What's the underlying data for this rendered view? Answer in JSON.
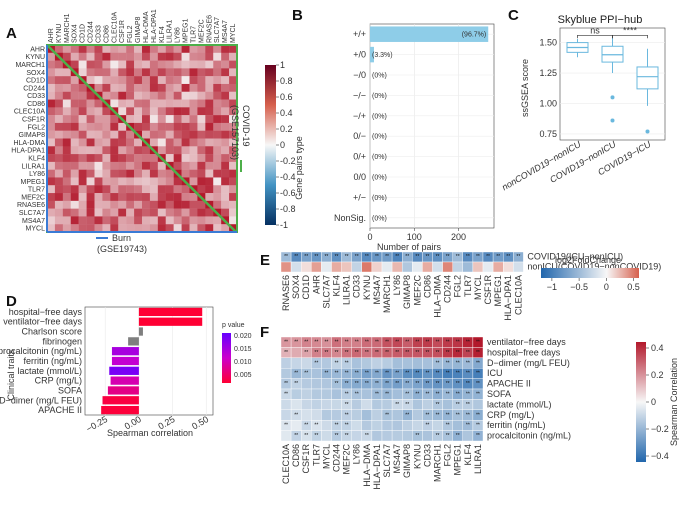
{
  "panels": {
    "A": "A",
    "B": "B",
    "C": "C",
    "D": "D",
    "E": "E",
    "F": "F"
  },
  "palette": {
    "red": "#b2182b",
    "blue": "#2166ac",
    "white": "#f7f7f7",
    "green": "#4daf4a",
    "skyblue": "#8ecde8",
    "magenta": "#ff00cc",
    "violet": "#6600ff"
  },
  "chart_data": [
    {
      "id": "A",
      "type": "heatmap",
      "genes": [
        "AHR",
        "KYNU",
        "MARCH1",
        "SOX4",
        "CD1D",
        "CD244",
        "CD33",
        "CD86",
        "CLEC10A",
        "CSF1R",
        "FGL2",
        "GIMAP8",
        "HLA-DMA",
        "HLA-DPA1",
        "KLF4",
        "LILRA1",
        "LY86",
        "MPEG1",
        "TLR7",
        "MEF2C",
        "RNASE6",
        "SLC7A7",
        "MS4A7",
        "MYCL"
      ],
      "colorbar_ticks": [
        "1",
        "0.8",
        "0.6",
        "0.4",
        "0.2",
        "0",
        "-0.2",
        "-0.4",
        "-0.6",
        "-0.8",
        "-1"
      ],
      "colorbar_range": [
        -1,
        1
      ],
      "left_label": "Burn",
      "left_label_2": "(GSE19743)",
      "right_label": "COVID-19",
      "right_label_2": "(GSE157103)"
    },
    {
      "id": "B",
      "type": "bar",
      "title": "",
      "xlabel": "Number of pairs",
      "ylabel": "Gene pairs type",
      "categories": [
        "+/+",
        "+/0",
        "−/0",
        "−/−",
        "−/+",
        "0/−",
        "0/+",
        "0/0",
        "+/−",
        "NonSig."
      ],
      "values": [
        267,
        9,
        0,
        0,
        0,
        0,
        0,
        0,
        0,
        0
      ],
      "labels": [
        "(96.7%)",
        "(3.3%)",
        "(0%)",
        "(0%)",
        "(0%)",
        "(0%)",
        "(0%)",
        "(0%)",
        "(0%)",
        "(0%)"
      ],
      "xticks": [
        0,
        100,
        200
      ],
      "xlim": [
        0,
        280
      ]
    },
    {
      "id": "C",
      "type": "box",
      "title": "Skyblue PPI−hub",
      "ylabel": "ssGSEA score",
      "categories": [
        "nonCOVID19−nonICU",
        "COVID19−nonICU",
        "COVID19−ICU"
      ],
      "boxes": [
        {
          "min": 1.38,
          "q1": 1.42,
          "median": 1.46,
          "q3": 1.5,
          "max": 1.53,
          "outliers": []
        },
        {
          "min": 1.25,
          "q1": 1.34,
          "median": 1.4,
          "q3": 1.47,
          "max": 1.54,
          "outliers": [
            1.05,
            0.86
          ]
        },
        {
          "min": 0.98,
          "q1": 1.12,
          "median": 1.22,
          "q3": 1.3,
          "max": 1.45,
          "outliers": [
            0.77
          ]
        }
      ],
      "yticks": [
        "0.75",
        "1.00",
        "1.25",
        "1.50"
      ],
      "ylim": [
        0.7,
        1.62
      ],
      "sig": [
        {
          "text": "ns"
        },
        {
          "text": "****"
        }
      ]
    },
    {
      "id": "D",
      "type": "bar",
      "xlabel": "Spearman correlation",
      "ylabel": "Clinical traits",
      "legend_title": "p value",
      "categories": [
        "hospital−free days",
        "ventilator−free days",
        "Charlson score",
        "fibrinogen",
        "procalcitonin (ng/mL)",
        "ferritin (ng/mL)",
        "lactate (mmol/L)",
        "CRP (mg/L)",
        "SOFA",
        "D−dimer (mg/L FEU)",
        "APACHE II"
      ],
      "values": [
        0.47,
        0.47,
        0.03,
        -0.08,
        -0.2,
        -0.2,
        -0.22,
        -0.21,
        -0.23,
        -0.27,
        -0.28
      ],
      "pvalues": [
        0.0001,
        0.0001,
        null,
        null,
        0.015,
        0.012,
        0.02,
        0.009,
        0.006,
        0.001,
        0.0005
      ],
      "xticks": [
        "−0.25",
        "0.00",
        "0.25",
        "0.50"
      ],
      "xlim": [
        -0.4,
        0.55
      ],
      "legend_ticks": [
        "0.020",
        "0.015",
        "0.010",
        "0.005"
      ]
    },
    {
      "id": "E",
      "type": "heatmap",
      "genes": [
        "RNASE6",
        "SOX4",
        "CD1D",
        "AHR",
        "SLC7A7",
        "KLF4",
        "LILRA1",
        "CD33",
        "KYNU",
        "MS4A7",
        "MARCH1",
        "LY86",
        "GIMAP8",
        "MEF2C",
        "CD86",
        "HLA−DMA",
        "CD244",
        "FGL2",
        "TLR7",
        "MYCL",
        "CSF1R",
        "MPEG1",
        "HLA−DPA1",
        "CLEC10A"
      ],
      "rows": [
        "COVID19(ICU−nonICU)",
        "nonICU(COVID19−nonCOVID19)"
      ],
      "values": [
        [
          -0.5,
          -0.9,
          -0.7,
          -0.8,
          -0.6,
          -0.85,
          -0.5,
          -0.7,
          -0.9,
          -0.8,
          -0.75,
          -0.95,
          -0.6,
          -0.9,
          -0.8,
          -0.85,
          -0.7,
          -0.5,
          -0.9,
          -0.7,
          -0.9,
          -0.75,
          -0.85,
          -0.6
        ],
        [
          0.4,
          -0.2,
          0.1,
          0.35,
          -0.1,
          0.3,
          0.2,
          -0.3,
          0.5,
          0.15,
          -0.1,
          0.25,
          -0.4,
          -0.1,
          0.3,
          -0.2,
          0.45,
          -0.3,
          -0.5,
          0.2,
          -0.1,
          0.3,
          0.1,
          -0.2
        ]
      ],
      "legend_title": "log2FoldChange",
      "legend_ticks": [
        "−1",
        "−0.5",
        "0",
        "0.5"
      ],
      "range": [
        -1.2,
        0.6
      ],
      "star": "**"
    },
    {
      "id": "F",
      "type": "heatmap",
      "genes": [
        "CLEC10A",
        "CD86",
        "CSF1R",
        "TLR7",
        "MYCL",
        "CD244",
        "MEF2C",
        "LY86",
        "HLA−DMA",
        "HLA−DPA1",
        "SLC7A7",
        "MS4A7",
        "GIMAP8",
        "KYNU",
        "CD33",
        "MARCH1",
        "FGL2",
        "MPEG1",
        "KLF4",
        "LILRA1"
      ],
      "rows": [
        "ventilator−free days",
        "hospital−free days",
        "D−dimer (mg/L FEU)",
        "ICU",
        "APACHE II",
        "SOFA",
        "lactate (mmol/L)",
        "CRP (mg/L)",
        "ferritin (ng/mL)",
        "procalcitonin (ng/mL)"
      ],
      "row_base": [
        0.4,
        0.38,
        -0.2,
        -0.35,
        -0.3,
        -0.22,
        -0.15,
        -0.2,
        -0.15,
        -0.18
      ],
      "legend_title": "Spearman Correlation",
      "legend_ticks": [
        "0.4",
        "0.2",
        "0",
        "−0.2",
        "−0.4"
      ],
      "range": [
        -0.5,
        0.5
      ],
      "star": "**"
    }
  ]
}
